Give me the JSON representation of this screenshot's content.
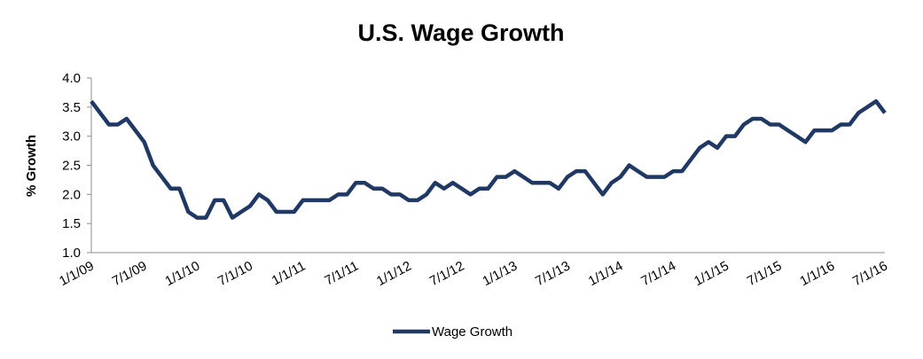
{
  "chart_data": {
    "type": "line",
    "title": "U.S. Wage Growth",
    "y_label": "% Growth",
    "categories": [
      "1/1/09",
      null,
      null,
      null,
      null,
      null,
      "7/1/09",
      null,
      null,
      null,
      null,
      null,
      "1/1/10",
      null,
      null,
      null,
      null,
      null,
      "7/1/10",
      null,
      null,
      null,
      null,
      null,
      "1/1/11",
      null,
      null,
      null,
      null,
      null,
      "7/1/11",
      null,
      null,
      null,
      null,
      null,
      "1/1/12",
      null,
      null,
      null,
      null,
      null,
      "7/1/12",
      null,
      null,
      null,
      null,
      null,
      "1/1/13",
      null,
      null,
      null,
      null,
      null,
      "7/1/13",
      null,
      null,
      null,
      null,
      null,
      "1/1/14",
      null,
      null,
      null,
      null,
      null,
      "7/1/14",
      null,
      null,
      null,
      null,
      null,
      "1/1/15",
      null,
      null,
      null,
      null,
      null,
      "7/1/15",
      null,
      null,
      null,
      null,
      null,
      "1/1/16",
      null,
      null,
      null,
      null,
      null,
      "7/1/16"
    ],
    "series": [
      {
        "name": "Wage Growth",
        "color": "#1f3864",
        "values": [
          3.6,
          3.4,
          3.2,
          3.2,
          3.3,
          3.1,
          2.9,
          2.5,
          2.3,
          2.1,
          2.1,
          1.7,
          1.6,
          1.6,
          1.9,
          1.9,
          1.6,
          1.7,
          1.8,
          2.0,
          1.9,
          1.7,
          1.7,
          1.7,
          1.9,
          1.9,
          1.9,
          1.9,
          2.0,
          2.0,
          2.2,
          2.2,
          2.1,
          2.1,
          2.0,
          2.0,
          1.9,
          1.9,
          2.0,
          2.2,
          2.1,
          2.2,
          2.1,
          2.0,
          2.1,
          2.1,
          2.3,
          2.3,
          2.4,
          2.3,
          2.2,
          2.2,
          2.2,
          2.1,
          2.3,
          2.4,
          2.4,
          2.2,
          2.0,
          2.2,
          2.3,
          2.5,
          2.4,
          2.3,
          2.3,
          2.3,
          2.4,
          2.4,
          2.6,
          2.8,
          2.9,
          2.8,
          3.0,
          3.0,
          3.2,
          3.3,
          3.3,
          3.2,
          3.2,
          3.1,
          3.0,
          2.9,
          3.1,
          3.1,
          3.1,
          3.2,
          3.2,
          3.4,
          3.5,
          3.6,
          3.4
        ]
      }
    ],
    "ylim": [
      1.0,
      4.0
    ],
    "yticks": [
      {
        "value": 1.0,
        "label": "1.0"
      },
      1.5,
      {
        "value": 2.0,
        "label": "2.0"
      },
      2.5,
      {
        "value": 3.0,
        "label": "3.0"
      },
      3.5,
      {
        "value": 4.0,
        "label": "4.0"
      }
    ],
    "grid": false,
    "legend": "bottom"
  }
}
